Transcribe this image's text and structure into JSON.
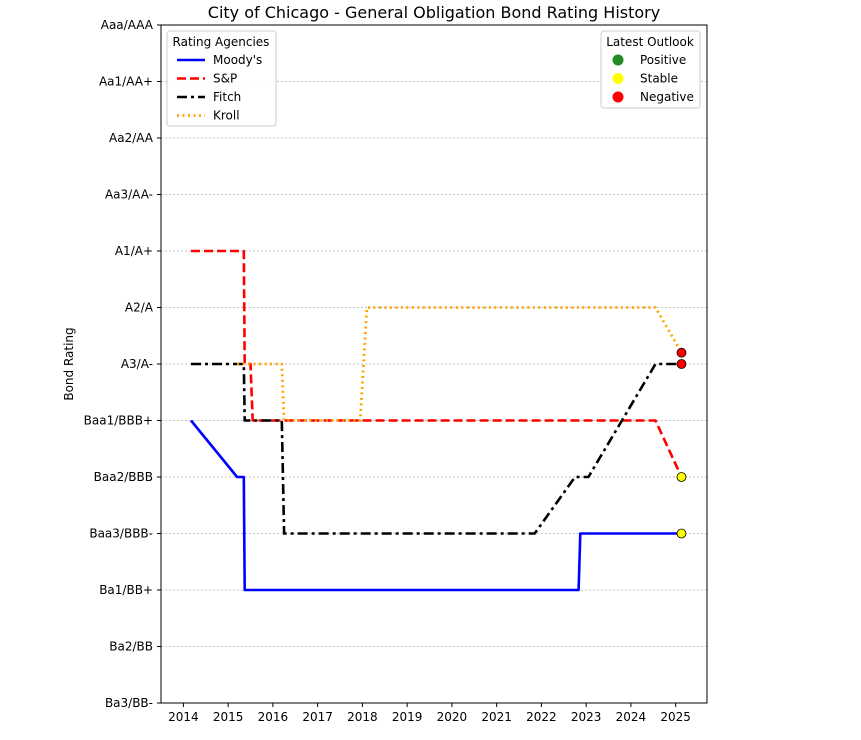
{
  "chart_data": {
    "type": "line",
    "title": "City of Chicago - General Obligation Bond Rating History",
    "xlabel": "",
    "ylabel": "Bond Rating",
    "xlim": [
      2013.5,
      2025.7
    ],
    "ylim": [
      0,
      12
    ],
    "x_ticks": [
      2014,
      2015,
      2016,
      2017,
      2018,
      2019,
      2020,
      2021,
      2022,
      2023,
      2024,
      2025
    ],
    "y_tick_labels": [
      "Ba3/BB-",
      "Ba2/BB",
      "Ba1/BB+",
      "Baa3/BBB-",
      "Baa2/BBB",
      "Baa1/BBB+",
      "A3/A-",
      "A2/A",
      "A1/A+",
      "Aa3/AA-",
      "Aa2/AA",
      "Aa1/AA+",
      "Aaa/AAA"
    ],
    "grid": "horizontal",
    "series": [
      {
        "name": "Moody's",
        "color": "#0000ff",
        "dash": "solid",
        "points": [
          [
            2014.17,
            5
          ],
          [
            2015.2,
            4
          ],
          [
            2015.35,
            4
          ],
          [
            2015.37,
            2
          ],
          [
            2022.83,
            2
          ],
          [
            2022.87,
            3
          ],
          [
            2025.13,
            3
          ]
        ]
      },
      {
        "name": "S&P",
        "color": "#ff0000",
        "dash": "dashed",
        "points": [
          [
            2014.17,
            8
          ],
          [
            2015.35,
            8
          ],
          [
            2015.37,
            6
          ],
          [
            2015.5,
            6
          ],
          [
            2015.55,
            5
          ],
          [
            2024.55,
            5
          ],
          [
            2025.13,
            4
          ]
        ]
      },
      {
        "name": "Fitch",
        "color": "#000000",
        "dash": "dashdot",
        "points": [
          [
            2014.17,
            6
          ],
          [
            2015.35,
            6
          ],
          [
            2015.37,
            5
          ],
          [
            2016.2,
            5
          ],
          [
            2016.25,
            3
          ],
          [
            2021.85,
            3
          ],
          [
            2022.75,
            4
          ],
          [
            2023.05,
            4
          ],
          [
            2024.55,
            6
          ],
          [
            2025.13,
            6
          ]
        ]
      },
      {
        "name": "Kroll",
        "color": "#ffa500",
        "dash": "dotted",
        "points": [
          [
            2015.2,
            6
          ],
          [
            2016.2,
            6
          ],
          [
            2016.25,
            5
          ],
          [
            2017.95,
            5
          ],
          [
            2018.1,
            7
          ],
          [
            2024.55,
            7
          ],
          [
            2025.13,
            6.2
          ]
        ]
      }
    ],
    "outlook_markers": [
      {
        "agency": "Moody's",
        "x": 2025.13,
        "y": 3,
        "outlook": "Stable"
      },
      {
        "agency": "S&P",
        "x": 2025.13,
        "y": 4,
        "outlook": "Stable"
      },
      {
        "agency": "Fitch",
        "x": 2025.13,
        "y": 6,
        "outlook": "Negative"
      },
      {
        "agency": "Kroll",
        "x": 2025.13,
        "y": 6.2,
        "outlook": "Negative"
      }
    ],
    "legend_agencies": {
      "title": "Rating Agencies",
      "placement": "top-left",
      "entries": [
        "Moody's",
        "S&P",
        "Fitch",
        "Kroll"
      ]
    },
    "legend_outlook": {
      "title": "Latest Outlook",
      "placement": "top-right",
      "entries": [
        {
          "label": "Positive",
          "color": "#228b22"
        },
        {
          "label": "Stable",
          "color": "#ffff00"
        },
        {
          "label": "Negative",
          "color": "#ff0000"
        }
      ]
    }
  }
}
